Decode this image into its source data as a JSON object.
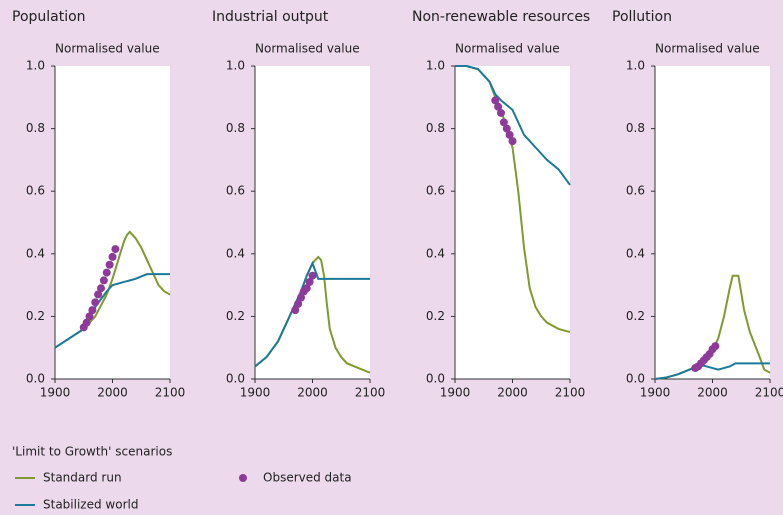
{
  "legend": {
    "title": "'Limit to Growth' scenarios",
    "items": [
      {
        "name": "Standard run",
        "type": "line",
        "color": "#7f9a2e"
      },
      {
        "name": "Stabilized world",
        "type": "line",
        "color": "#1a7a9a"
      },
      {
        "name": "Observed data",
        "type": "scatter",
        "color": "#8e3a9a"
      }
    ]
  },
  "chart_data": [
    {
      "type": "line",
      "title": "Population",
      "ylabel": "Normalised value",
      "xlim": [
        1900,
        2100
      ],
      "xticks": [
        1900,
        2000,
        2100
      ],
      "ylim": [
        0,
        1
      ],
      "yticks": [
        {
          "value": 0,
          "label": "0.0"
        },
        0.2,
        0.4,
        0.6,
        0.8,
        {
          "value": 1,
          "label": "1.0"
        }
      ],
      "series": [
        {
          "x": [
            1900,
            1950,
            1970,
            1990,
            2000,
            2010,
            2020,
            2025,
            2030,
            2040,
            2050,
            2060,
            2070,
            2080,
            2090,
            2100
          ],
          "values": [
            0.1,
            0.16,
            0.2,
            0.27,
            0.32,
            0.38,
            0.44,
            0.46,
            0.47,
            0.45,
            0.42,
            0.38,
            0.34,
            0.3,
            0.28,
            0.27
          ]
        },
        {
          "x": [
            1900,
            1950,
            1970,
            1990,
            2000,
            2020,
            2040,
            2060,
            2100
          ],
          "values": [
            0.1,
            0.16,
            0.23,
            0.28,
            0.3,
            0.31,
            0.32,
            0.335,
            0.335
          ]
        },
        {
          "x": [
            1950,
            1955,
            1960,
            1965,
            1970,
            1975,
            1980,
            1985,
            1990,
            1995,
            2000,
            2005
          ],
          "values": [
            0.165,
            0.18,
            0.2,
            0.22,
            0.245,
            0.27,
            0.29,
            0.315,
            0.34,
            0.365,
            0.39,
            0.415
          ]
        }
      ]
    },
    {
      "type": "line",
      "title": "Industrial output",
      "ylabel": "Normalised value",
      "xlim": [
        1900,
        2100
      ],
      "xticks": [
        1900,
        2000,
        2100
      ],
      "ylim": [
        0,
        1
      ],
      "yticks": [
        {
          "value": 0,
          "label": "0.0"
        },
        0.2,
        0.4,
        0.6,
        0.8,
        {
          "value": 1,
          "label": "1.0"
        }
      ],
      "series": [
        {
          "x": [
            1900,
            1920,
            1940,
            1960,
            1980,
            1990,
            2000,
            2010,
            2015,
            2020,
            2025,
            2030,
            2040,
            2050,
            2060,
            2080,
            2100
          ],
          "values": [
            0.04,
            0.07,
            0.12,
            0.2,
            0.28,
            0.33,
            0.37,
            0.39,
            0.38,
            0.33,
            0.24,
            0.16,
            0.1,
            0.07,
            0.05,
            0.035,
            0.02
          ]
        },
        {
          "x": [
            1900,
            1920,
            1940,
            1960,
            1980,
            1990,
            2000,
            2010,
            2100
          ],
          "values": [
            0.04,
            0.07,
            0.12,
            0.2,
            0.28,
            0.33,
            0.37,
            0.32,
            0.32
          ]
        },
        {
          "x": [
            1970,
            1975,
            1980,
            1985,
            1990,
            1995,
            2000
          ],
          "values": [
            0.22,
            0.24,
            0.26,
            0.28,
            0.29,
            0.31,
            0.33
          ]
        }
      ]
    },
    {
      "type": "line",
      "title": "Non-renewable resources",
      "ylabel": "Normalised value",
      "xlim": [
        1900,
        2100
      ],
      "xticks": [
        1900,
        2000,
        2100
      ],
      "ylim": [
        0,
        1
      ],
      "yticks": [
        {
          "value": 0,
          "label": "0.0"
        },
        0.2,
        0.4,
        0.6,
        0.8,
        {
          "value": 1,
          "label": "1.0"
        }
      ],
      "series": [
        {
          "x": [
            1900,
            1920,
            1940,
            1960,
            1970,
            1980,
            1990,
            2000,
            2010,
            2020,
            2030,
            2040,
            2050,
            2060,
            2070,
            2080,
            2100
          ],
          "values": [
            1.0,
            1.0,
            0.99,
            0.95,
            0.9,
            0.86,
            0.8,
            0.74,
            0.6,
            0.42,
            0.29,
            0.23,
            0.2,
            0.18,
            0.17,
            0.16,
            0.15
          ]
        },
        {
          "x": [
            1900,
            1920,
            1940,
            1960,
            1970,
            1980,
            2000,
            2020,
            2040,
            2060,
            2080,
            2100
          ],
          "values": [
            1.0,
            1.0,
            0.99,
            0.95,
            0.91,
            0.89,
            0.86,
            0.78,
            0.74,
            0.7,
            0.67,
            0.62
          ]
        },
        {
          "x": [
            1970,
            1975,
            1980,
            1985,
            1990,
            1995,
            2000
          ],
          "values": [
            0.89,
            0.87,
            0.85,
            0.82,
            0.8,
            0.78,
            0.76
          ]
        }
      ]
    },
    {
      "type": "line",
      "title": "Pollution",
      "ylabel": "Normalised value",
      "xlim": [
        1900,
        2100
      ],
      "xticks": [
        1900,
        2000,
        2100
      ],
      "ylim": [
        0,
        1
      ],
      "yticks": [
        {
          "value": 0,
          "label": "0.0"
        },
        0.2,
        0.4,
        0.6,
        0.8,
        {
          "value": 1,
          "label": "1.0"
        }
      ],
      "series": [
        {
          "x": [
            1900,
            1920,
            1940,
            1960,
            1980,
            2000,
            2010,
            2020,
            2030,
            2035,
            2045,
            2055,
            2065,
            2080,
            2090,
            2100
          ],
          "values": [
            0.0,
            0.005,
            0.015,
            0.03,
            0.05,
            0.09,
            0.13,
            0.2,
            0.29,
            0.33,
            0.33,
            0.22,
            0.15,
            0.08,
            0.03,
            0.02
          ]
        },
        {
          "x": [
            1900,
            1920,
            1940,
            1960,
            1980,
            2000,
            2010,
            2030,
            2040,
            2100
          ],
          "values": [
            0.0,
            0.005,
            0.015,
            0.03,
            0.045,
            0.035,
            0.03,
            0.04,
            0.05,
            0.05
          ]
        },
        {
          "x": [
            1970,
            1975,
            1980,
            1985,
            1990,
            1995,
            2000,
            2005
          ],
          "values": [
            0.035,
            0.04,
            0.05,
            0.06,
            0.07,
            0.08,
            0.095,
            0.105
          ]
        }
      ]
    }
  ]
}
